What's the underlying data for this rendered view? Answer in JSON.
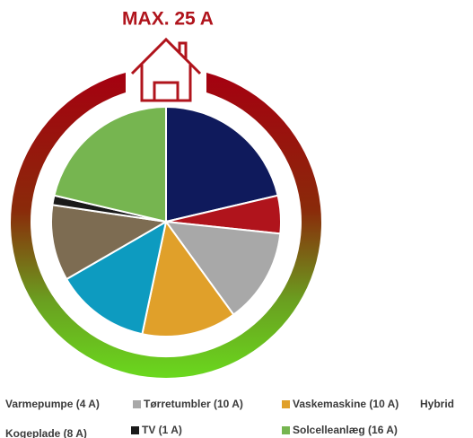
{
  "chart_data": {
    "type": "pie",
    "title": "MAX. 25 A",
    "categories": [
      null,
      "Varmepumpe (4 A)",
      "Tørretumbler (10 A)",
      "Vaskemaskine (10 A)",
      "Hybrid",
      "Kogeplade (8 A)",
      "TV (1 A)",
      "Solcelleanlæg (16 A)"
    ],
    "values": [
      16,
      4,
      10,
      10,
      10,
      8,
      1,
      16
    ],
    "colors": [
      "#0f1a5c",
      "#b0141c",
      "#a8a8a8",
      "#e0a02a",
      "#0d9bc0",
      "#7d6c52",
      "#1a1a1a",
      "#76b550"
    ]
  }
}
